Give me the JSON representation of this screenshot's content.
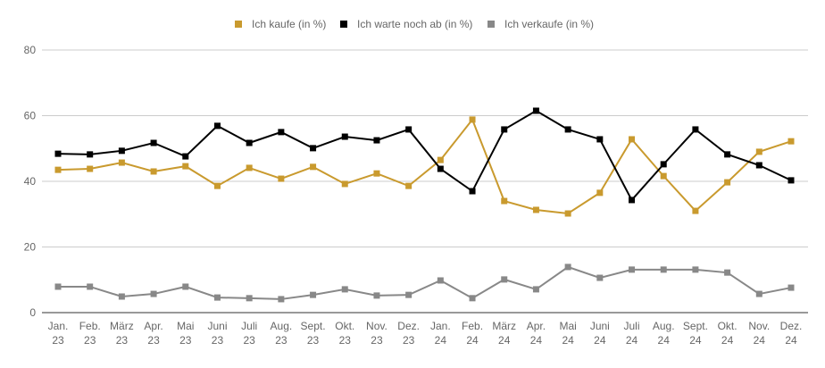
{
  "chart_data": {
    "type": "line",
    "title": "",
    "xlabel": "",
    "ylabel": "",
    "ylim": [
      0,
      80
    ],
    "yticks": [
      "0",
      "20",
      "40",
      "60",
      "80"
    ],
    "grid": true,
    "legend_position": "top-center",
    "categories": [
      [
        "Jan.",
        "23"
      ],
      [
        "Feb.",
        "23"
      ],
      [
        "März",
        "23"
      ],
      [
        "Apr.",
        "23"
      ],
      [
        "Mai",
        "23"
      ],
      [
        "Juni",
        "23"
      ],
      [
        "Juli",
        "23"
      ],
      [
        "Aug.",
        "23"
      ],
      [
        "Sept.",
        "23"
      ],
      [
        "Okt.",
        "23"
      ],
      [
        "Nov.",
        "23"
      ],
      [
        "Dez.",
        "23"
      ],
      [
        "Jan.",
        "24"
      ],
      [
        "Feb.",
        "24"
      ],
      [
        "März",
        "24"
      ],
      [
        "Apr.",
        "24"
      ],
      [
        "Mai",
        "24"
      ],
      [
        "Juni",
        "24"
      ],
      [
        "Juli",
        "24"
      ],
      [
        "Aug.",
        "24"
      ],
      [
        "Sept.",
        "24"
      ],
      [
        "Okt.",
        "24"
      ],
      [
        "Nov.",
        "24"
      ],
      [
        "Dez.",
        "24"
      ]
    ],
    "series": [
      {
        "name": "Ich kaufe (in %)",
        "color": "#c99a2e",
        "values": [
          43.5,
          43.8,
          45.7,
          43.0,
          44.6,
          38.6,
          44.1,
          40.8,
          44.4,
          39.2,
          42.4,
          38.6,
          46.5,
          58.8,
          34.0,
          31.3,
          30.2,
          36.5,
          52.8,
          41.6,
          31.0,
          39.7,
          49.0,
          52.2
        ]
      },
      {
        "name": "Ich warte noch ab (in %)",
        "color": "#000000",
        "values": [
          48.4,
          48.2,
          49.3,
          51.7,
          47.6,
          56.9,
          51.7,
          55.0,
          50.1,
          53.6,
          52.5,
          55.8,
          43.8,
          37.0,
          55.8,
          61.5,
          55.8,
          52.8,
          34.3,
          45.2,
          55.8,
          48.2,
          44.9,
          40.3
        ]
      },
      {
        "name": "Ich verkaufe (in %)",
        "color": "#888888",
        "values": [
          7.9,
          7.9,
          4.9,
          5.7,
          7.9,
          4.6,
          4.4,
          4.1,
          5.4,
          7.1,
          5.2,
          5.4,
          9.8,
          4.4,
          10.1,
          7.1,
          13.9,
          10.6,
          13.1,
          13.1,
          13.1,
          12.2,
          5.7,
          7.6
        ]
      }
    ]
  }
}
